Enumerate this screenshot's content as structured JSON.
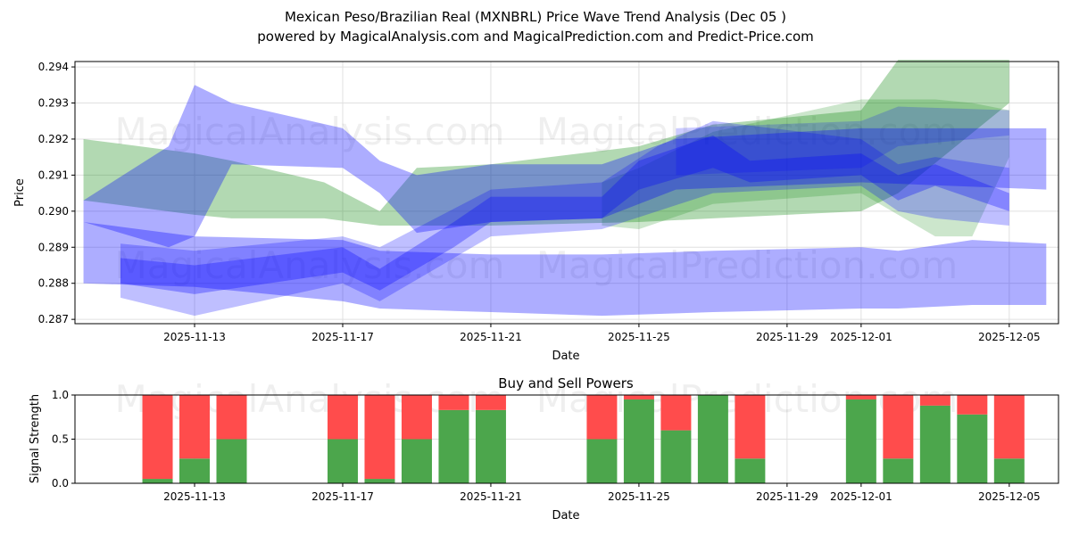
{
  "chart_data": [
    {
      "type": "area",
      "title": "Mexican Peso/Brazilian Real (MXNBRL) Price Wave Trend Analysis (Dec 05 )",
      "subtitle": "powered by MagicalAnalysis.com and MagicalPrediction.com and Predict-Price.com",
      "xlabel": "Date",
      "ylabel": "Price",
      "xlim": [
        "2025-11-09.77",
        "2025-12-06.33"
      ],
      "ylim": [
        0.28688,
        0.29415
      ],
      "grid": true,
      "x_ticks": [
        "2025-11-13",
        "2025-11-17",
        "2025-11-21",
        "2025-11-25",
        "2025-11-29",
        "2025-12-01",
        "2025-12-05"
      ],
      "y_ticks": [
        "0.287",
        "0.288",
        "0.289",
        "0.290",
        "0.291",
        "0.292",
        "0.293",
        "0.294"
      ],
      "watermarks": [
        "MagicalAnalysis.com",
        "MagicalPrediction.com"
      ],
      "bands": [
        {
          "name": "green-trend-1",
          "color": "#008000",
          "alpha": 0.3,
          "points": [
            [
              "2025-11-10",
              0.2903,
              0.292
            ],
            [
              "2025-11-13",
              0.2899,
              0.2916
            ],
            [
              "2025-11-14",
              0.2898,
              0.2914
            ],
            [
              "2025-11-16.5",
              0.2898,
              0.2908
            ],
            [
              "2025-11-18",
              0.2896,
              0.29
            ],
            [
              "2025-11-19",
              0.2896,
              0.2912
            ],
            [
              "2025-11-21",
              0.2896,
              0.2913
            ],
            [
              "2025-11-25",
              0.2897,
              0.2918
            ],
            [
              "2025-11-27",
              0.2898,
              0.2924
            ],
            [
              "2025-12-01",
              0.29,
              0.2928
            ],
            [
              "2025-12-02",
              0.2905,
              0.2942
            ],
            [
              "2025-12-05",
              0.293,
              0.2942
            ]
          ]
        },
        {
          "name": "green-trend-2",
          "color": "#008000",
          "alpha": 0.2,
          "points": [
            [
              "2025-11-24",
              0.2896,
              0.2908
            ],
            [
              "2025-11-25",
              0.2895,
              0.2912
            ],
            [
              "2025-11-27",
              0.2902,
              0.2922
            ],
            [
              "2025-12-01",
              0.2905,
              0.2931
            ],
            [
              "2025-12-03",
              0.2893,
              0.2931
            ],
            [
              "2025-12-04",
              0.2893,
              0.293
            ],
            [
              "2025-12-05",
              0.2915,
              0.2928
            ]
          ]
        },
        {
          "name": "blue-wave-1",
          "color": "#0000ff",
          "alpha": 0.32,
          "points": [
            [
              "2025-11-10",
              0.2897,
              0.2903
            ],
            [
              "2025-11-12.3",
              0.289,
              0.2918
            ],
            [
              "2025-11-13",
              0.2893,
              0.2935
            ],
            [
              "2025-11-14",
              0.2913,
              0.293
            ],
            [
              "2025-11-17",
              0.2912,
              0.2923
            ],
            [
              "2025-11-18",
              0.2905,
              0.2914
            ],
            [
              "2025-11-19",
              0.2894,
              0.291
            ],
            [
              "2025-11-21",
              0.2897,
              0.2913
            ],
            [
              "2025-11-24",
              0.2898,
              0.2913
            ],
            [
              "2025-11-26",
              0.2906,
              0.292
            ],
            [
              "2025-12-01",
              0.2908,
              0.2923
            ],
            [
              "2025-12-06",
              0.2906,
              0.2923
            ]
          ]
        },
        {
          "name": "blue-wave-2",
          "color": "#0000ff",
          "alpha": 0.32,
          "points": [
            [
              "2025-11-10",
              0.288,
              0.2897
            ],
            [
              "2025-11-13",
              0.2879,
              0.2893
            ],
            [
              "2025-11-17",
              0.2875,
              0.2892
            ],
            [
              "2025-11-18",
              0.2873,
              0.2889
            ],
            [
              "2025-11-21",
              0.2872,
              0.2888
            ],
            [
              "2025-11-24",
              0.2871,
              0.2888
            ],
            [
              "2025-11-27",
              0.2872,
              0.2889
            ],
            [
              "2025-12-01",
              0.2873,
              0.289
            ],
            [
              "2025-12-02",
              0.2873,
              0.2889
            ],
            [
              "2025-12-04",
              0.2874,
              0.2892
            ],
            [
              "2025-12-06",
              0.2874,
              0.2891
            ]
          ]
        },
        {
          "name": "blue-wave-3",
          "color": "#0000ff",
          "alpha": 0.25,
          "points": [
            [
              "2025-11-11",
              0.2876,
              0.2891
            ],
            [
              "2025-11-13",
              0.2871,
              0.2889
            ],
            [
              "2025-11-17",
              0.288,
              0.2893
            ],
            [
              "2025-11-18",
              0.2875,
              0.289
            ],
            [
              "2025-11-21",
              0.2893,
              0.2906
            ],
            [
              "2025-11-24",
              0.2895,
              0.2908
            ],
            [
              "2025-11-25.5",
              0.29,
              0.2918
            ],
            [
              "2025-11-27",
              0.2905,
              0.2925
            ],
            [
              "2025-12-01",
              0.2907,
              0.292
            ],
            [
              "2025-12-02",
              0.29,
              0.2913
            ],
            [
              "2025-12-03",
              0.2898,
              0.2915
            ],
            [
              "2025-12-05",
              0.2896,
              0.2912
            ]
          ]
        },
        {
          "name": "blue-wave-4",
          "color": "#0000ff",
          "alpha": 0.3,
          "points": [
            [
              "2025-11-11",
              0.288,
              0.2887
            ],
            [
              "2025-11-13",
              0.2877,
              0.2885
            ],
            [
              "2025-11-17",
              0.2883,
              0.289
            ],
            [
              "2025-11-18",
              0.2878,
              0.2884
            ],
            [
              "2025-11-20",
              0.289,
              0.2897
            ],
            [
              "2025-11-21",
              0.2897,
              0.2904
            ],
            [
              "2025-11-24",
              0.2898,
              0.2904
            ],
            [
              "2025-11-25",
              0.2906,
              0.2914
            ],
            [
              "2025-11-27",
              0.2912,
              0.2921
            ],
            [
              "2025-11-28",
              0.2908,
              0.2914
            ],
            [
              "2025-12-01",
              0.291,
              0.2916
            ],
            [
              "2025-12-02",
              0.2903,
              0.291
            ],
            [
              "2025-12-03",
              0.2907,
              0.2913
            ],
            [
              "2025-12-05",
              0.29,
              0.2905
            ]
          ]
        },
        {
          "name": "blue-wave-5",
          "color": "#0000ff",
          "alpha": 0.2,
          "points": [
            [
              "2025-11-26",
              0.291,
              0.2923
            ],
            [
              "2025-12-01",
              0.2912,
              0.2925
            ],
            [
              "2025-12-02",
              0.2918,
              0.2929
            ],
            [
              "2025-12-05",
              0.2921,
              0.2928
            ]
          ]
        }
      ]
    },
    {
      "type": "bar",
      "title": "Buy and Sell Powers",
      "xlabel": "Date",
      "ylabel": "Signal Strength",
      "ylim": [
        0,
        1
      ],
      "y_ticks": [
        "0.0",
        "0.5",
        "1.0"
      ],
      "x_ticks": [
        "2025-11-13",
        "2025-11-17",
        "2025-11-21",
        "2025-11-25",
        "2025-11-29",
        "2025-12-01",
        "2025-12-05"
      ],
      "categories": [
        "2025-11-12",
        "2025-11-13",
        "2025-11-14",
        "2025-11-17",
        "2025-11-18",
        "2025-11-19",
        "2025-11-20",
        "2025-11-21",
        "2025-11-24",
        "2025-11-25",
        "2025-11-26",
        "2025-11-27",
        "2025-11-28",
        "2025-12-01",
        "2025-12-02",
        "2025-12-03",
        "2025-12-04",
        "2025-12-05"
      ],
      "series": [
        {
          "name": "Buy",
          "color": "#4ca64c",
          "values": [
            0.05,
            0.28,
            0.5,
            0.5,
            0.05,
            0.5,
            0.83,
            0.83,
            0.5,
            0.95,
            0.6,
            1.0,
            0.28,
            0.95,
            0.28,
            0.88,
            0.78,
            0.28
          ]
        },
        {
          "name": "Sell",
          "color": "#ff4c4c",
          "values": [
            0.95,
            0.72,
            0.5,
            0.5,
            0.95,
            0.5,
            0.17,
            0.17,
            0.5,
            0.05,
            0.4,
            0.0,
            0.72,
            0.05,
            0.72,
            0.12,
            0.22,
            0.72
          ]
        }
      ]
    }
  ]
}
